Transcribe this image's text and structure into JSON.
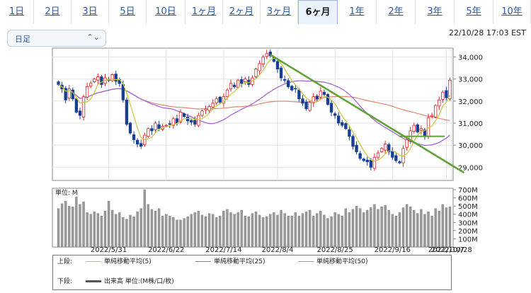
{
  "tabs": [
    {
      "label": "1日"
    },
    {
      "label": "2日"
    },
    {
      "label": "3日"
    },
    {
      "label": "5日"
    },
    {
      "label": "10日"
    },
    {
      "label": "1ヶ月"
    },
    {
      "label": "2ヶ月"
    },
    {
      "label": "3ヶ月"
    },
    {
      "label": "6ヶ月",
      "active": true
    },
    {
      "label": "1年"
    },
    {
      "label": "2年"
    },
    {
      "label": "3年"
    },
    {
      "label": "5年"
    },
    {
      "label": "10年"
    }
  ],
  "interval_select": {
    "value": "日足"
  },
  "timestamp": "22/10/28 17:03 EST",
  "chart_data": [
    {
      "type": "candlestick",
      "ylim": [
        28400,
        34400
      ],
      "y_ticks": [
        "34,000",
        "33,000",
        "32,000",
        "31,000",
        "30,000",
        "29,000"
      ],
      "x_ticks": [
        "2022/5/31",
        "2022/6/22",
        "2022/7/14",
        "2022/8/4",
        "2022/8/25",
        "2022/9/16",
        "2022/10/7",
        "2022/10/28"
      ],
      "closes": [
        32750,
        32550,
        32050,
        32550,
        32100,
        31500,
        31350,
        32200,
        32650,
        32800,
        33000,
        33100,
        32750,
        33050,
        32950,
        33200,
        32900,
        32800,
        32050,
        30950,
        30550,
        30250,
        30050,
        29950,
        30450,
        30750,
        30650,
        31000,
        30750,
        30850,
        30900,
        30950,
        31200,
        31000,
        31500,
        31300,
        31100,
        31050,
        30950,
        31350,
        31550,
        31650,
        31750,
        31900,
        32100,
        31950,
        32200,
        32500,
        32800,
        32650,
        32950,
        32800,
        33000,
        32750,
        33050,
        33450,
        33700,
        34000,
        34150,
        34050,
        33800,
        33450,
        33050,
        32950,
        32650,
        32500,
        32550,
        32100,
        31900,
        31650,
        31950,
        32200,
        32100,
        32450,
        32300,
        31850,
        31500,
        31350,
        31000,
        30900,
        30750,
        30400,
        29950,
        29700,
        29400,
        29300,
        29250,
        29000,
        29450,
        29650,
        29850,
        30050,
        29700,
        29450,
        29300,
        29200,
        29850,
        30250,
        30650,
        30900,
        30600,
        30750,
        30400,
        31250,
        31350,
        31800,
        32050,
        32400,
        32150,
        32950
      ],
      "series": [
        {
          "name": "単純移動平均(5)",
          "color": "#c8c83a"
        },
        {
          "name": "単純移動平均(25)",
          "color": "#a45bd6"
        },
        {
          "name": "単純移動平均(50)",
          "color": "#e0876a"
        }
      ],
      "trendline_color": "#5ea236",
      "hline_value": 30400
    },
    {
      "type": "bar",
      "unit_label": "単位: M",
      "ylim": [
        0,
        700
      ],
      "y_ticks": [
        "700M",
        "600M",
        "500M",
        "400M",
        "300M",
        "200M",
        "100M"
      ],
      "values": [
        470,
        530,
        560,
        500,
        490,
        610,
        520,
        550,
        420,
        400,
        430,
        410,
        380,
        440,
        560,
        450,
        400,
        420,
        360,
        340,
        390,
        370,
        430,
        470,
        700,
        520,
        460,
        440,
        470,
        380,
        400,
        380,
        360,
        330,
        330,
        350,
        370,
        400,
        420,
        440,
        390,
        370,
        410,
        400,
        360,
        380,
        440,
        460,
        420,
        400,
        420,
        450,
        380,
        370,
        410,
        430,
        390,
        360,
        370,
        400,
        420,
        390,
        450,
        410,
        380,
        380,
        420,
        380,
        410,
        430,
        450,
        380,
        410,
        440,
        390,
        350,
        370,
        420,
        400,
        380,
        470,
        420,
        460,
        500,
        470,
        420,
        450,
        480,
        520,
        460,
        490,
        510,
        450,
        400,
        380,
        420,
        480,
        520,
        490,
        450,
        410,
        460,
        400,
        430,
        380,
        470,
        440,
        520,
        480,
        490
      ],
      "bar_color": "#9a9a9a"
    }
  ],
  "legend": {
    "upper_label": "上段:",
    "lower_label": "下段:",
    "ma5": "単純移動平均(5)",
    "ma25": "単純移動平均(25)",
    "ma50": "単純移動平均(50)",
    "volume": "出来高 単位:(M株/口/枚)"
  }
}
